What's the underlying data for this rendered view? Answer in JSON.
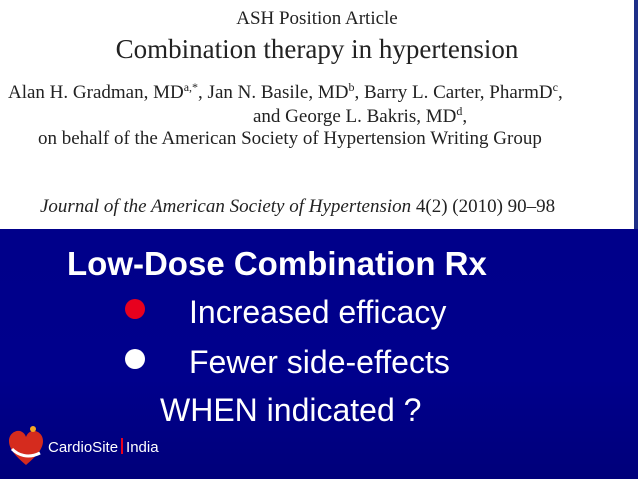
{
  "article": {
    "position_label": "ASH Position Article",
    "title": "Combination therapy in hypertension",
    "authors": [
      {
        "name": "Alan H. Gradman, MD",
        "sup": "a,*"
      },
      {
        "name": ", Jan N. Basile, MD",
        "sup": "b"
      },
      {
        "name": ", Barry L. Carter, PharmD",
        "sup": "c"
      },
      {
        "name": ",",
        "sup": ""
      }
    ],
    "authors_line2": {
      "text": "and George L. Bakris, MD",
      "sup": "d",
      "tail": ","
    },
    "authors_line3": "on behalf of the American Society of Hypertension Writing Group",
    "journal": {
      "name": "Journal of the American Society of Hypertension",
      "citation": " 4(2) (2010) 90–98"
    }
  },
  "slide": {
    "headline": "Low-Dose Combination Rx",
    "bullets": [
      {
        "text": "Increased efficacy",
        "color": "#e8001e"
      },
      {
        "text": "Fewer side-effects",
        "color": "#ffffff"
      }
    ],
    "question": "WHEN indicated ?"
  },
  "logo": {
    "name": "CardioSite",
    "region": "India"
  },
  "colors": {
    "panel_bg": "#00008a",
    "bullet_red": "#e8001e",
    "text_white": "#ffffff"
  }
}
